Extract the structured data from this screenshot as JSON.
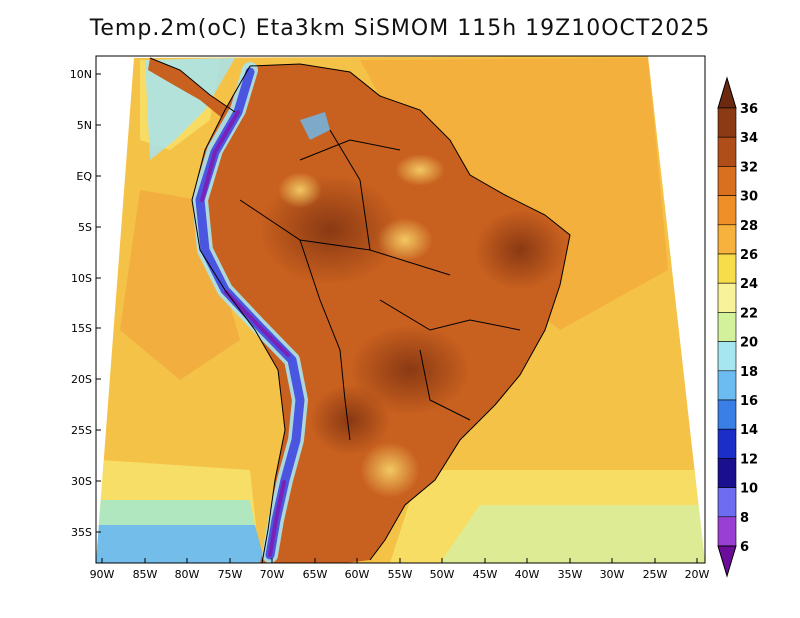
{
  "title": "Temp.2m(oC) Eta3km SiSMOM 115h 19Z10OCT2025",
  "map": {
    "lat_ticks": [
      "10N",
      "5N",
      "EQ",
      "5S",
      "10S",
      "15S",
      "20S",
      "25S",
      "30S",
      "35S"
    ],
    "lon_ticks": [
      "90W",
      "85W",
      "80W",
      "75W",
      "70W",
      "65W",
      "60W",
      "55W",
      "50W",
      "45W",
      "40W",
      "35W",
      "30W",
      "25W",
      "20W"
    ],
    "ocean_color": "#f5c248",
    "land_color": "#c8601f",
    "andes_color": "#4a55e0"
  },
  "colorbar": {
    "labels": [
      "36",
      "34",
      "32",
      "30",
      "28",
      "26",
      "24",
      "22",
      "20",
      "18",
      "16",
      "14",
      "12",
      "10",
      "8",
      "6"
    ],
    "colors": [
      "#6b2a10",
      "#8c3a14",
      "#b04e1a",
      "#d9701f",
      "#ef8f28",
      "#f6b23c",
      "#f7dd4a",
      "#f8f39a",
      "#d3f09a",
      "#a6e6f0",
      "#6cbcf2",
      "#3a7fe6",
      "#1b2ec7",
      "#1a108f",
      "#6e6cf0",
      "#9a3fd3",
      "#6b0c9a"
    ]
  }
}
